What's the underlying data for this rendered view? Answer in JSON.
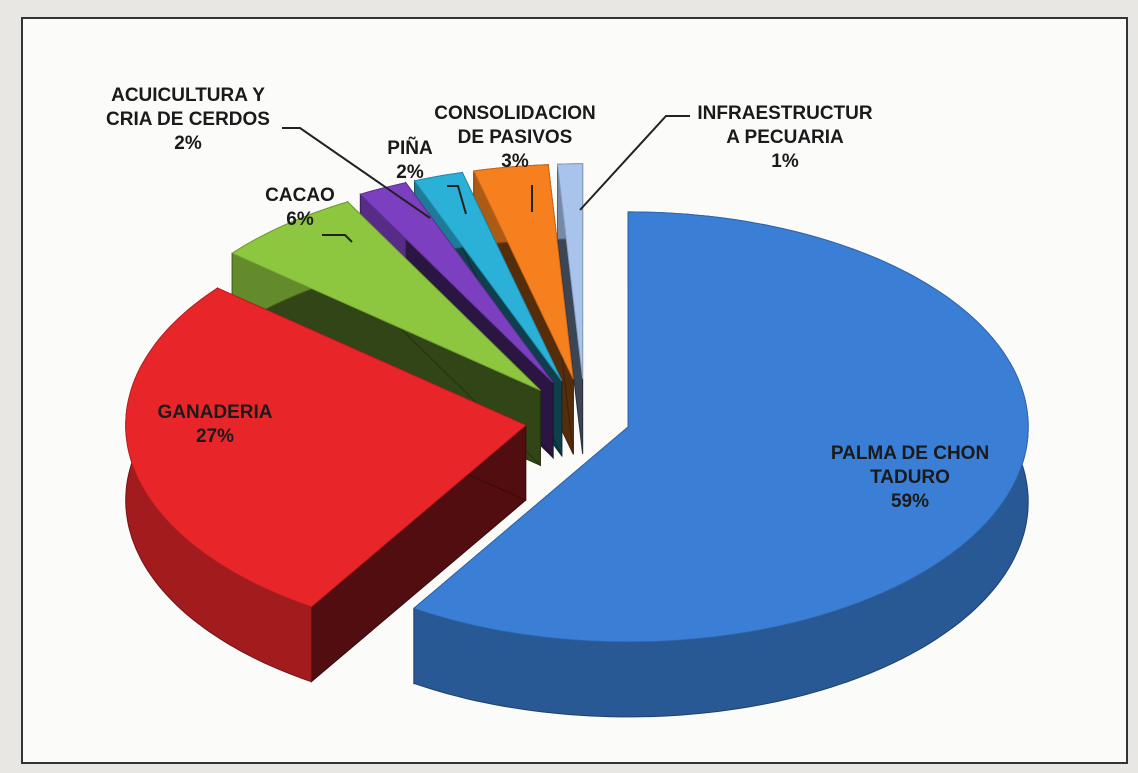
{
  "chart_data": {
    "type": "pie",
    "categories": [
      "PALMA DE CHON\nTADURO",
      "GANADERIA",
      "CACAO",
      "ACUICULTURA Y\nCRIA DE CERDOS",
      "PIÑA",
      "CONSOLIDACION\nDE PASIVOS",
      "INFRAESTRUCTUR\nA PECUARIA"
    ],
    "values": [
      59,
      27,
      6,
      2,
      2,
      3,
      1
    ],
    "value_labels": [
      "59%",
      "27%",
      "6%",
      "2%",
      "2%",
      "3%",
      "1%"
    ],
    "colors": [
      "#3a7fd5",
      "#e8262a",
      "#8dc63f",
      "#7b3fbf",
      "#2bb0d8",
      "#f7801e",
      "#a9c4ec"
    ]
  }
}
